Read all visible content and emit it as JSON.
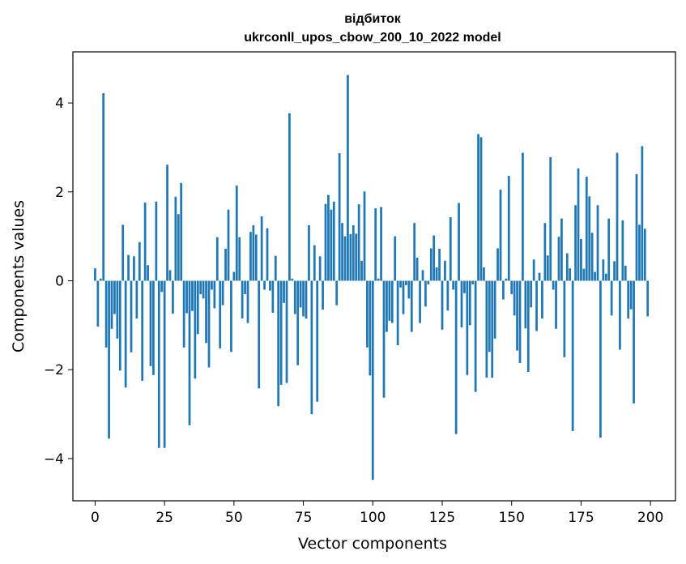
{
  "chart_data": {
    "type": "bar",
    "title": "відбиток",
    "subtitle": "ukrconll_upos_cbow_200_10_2022 model",
    "xlabel": "Vector components",
    "ylabel": "Components values",
    "xlim": [
      -8,
      209
    ],
    "ylim": [
      -4.95,
      5.15
    ],
    "xticks": [
      0,
      25,
      50,
      75,
      100,
      125,
      150,
      175,
      200
    ],
    "yticks": [
      -4,
      -2,
      0,
      2,
      4
    ],
    "bar_color": "#1f77b4",
    "grid": false,
    "legend": "none",
    "x": [
      0,
      1,
      2,
      3,
      4,
      5,
      6,
      7,
      8,
      9,
      10,
      11,
      12,
      13,
      14,
      15,
      16,
      17,
      18,
      19,
      20,
      21,
      22,
      23,
      24,
      25,
      26,
      27,
      28,
      29,
      30,
      31,
      32,
      33,
      34,
      35,
      36,
      37,
      38,
      39,
      40,
      41,
      42,
      43,
      44,
      45,
      46,
      47,
      48,
      49,
      50,
      51,
      52,
      53,
      54,
      55,
      56,
      57,
      58,
      59,
      60,
      61,
      62,
      63,
      64,
      65,
      66,
      67,
      68,
      69,
      70,
      71,
      72,
      73,
      74,
      75,
      76,
      77,
      78,
      79,
      80,
      81,
      82,
      83,
      84,
      85,
      86,
      87,
      88,
      89,
      90,
      91,
      92,
      93,
      94,
      95,
      96,
      97,
      98,
      99,
      100,
      101,
      102,
      103,
      104,
      105,
      106,
      107,
      108,
      109,
      110,
      111,
      112,
      113,
      114,
      115,
      116,
      117,
      118,
      119,
      120,
      121,
      122,
      123,
      124,
      125,
      126,
      127,
      128,
      129,
      130,
      131,
      132,
      133,
      134,
      135,
      136,
      137,
      138,
      139,
      140,
      141,
      142,
      143,
      144,
      145,
      146,
      147,
      148,
      149,
      150,
      151,
      152,
      153,
      154,
      155,
      156,
      157,
      158,
      159,
      160,
      161,
      162,
      163,
      164,
      165,
      166,
      167,
      168,
      169,
      170,
      171,
      172,
      173,
      174,
      175,
      176,
      177,
      178,
      179,
      180,
      181,
      182,
      183,
      184,
      185,
      186,
      187,
      188,
      189,
      190,
      191,
      192,
      193,
      194,
      195,
      196,
      197,
      198,
      199
    ],
    "values": [
      0.28,
      -1.03,
      0.05,
      4.22,
      -1.5,
      -3.55,
      -1.08,
      -0.75,
      -1.3,
      -2.02,
      1.26,
      -2.4,
      0.58,
      -1.61,
      0.55,
      -0.85,
      0.87,
      -2.25,
      1.76,
      0.35,
      -1.92,
      -2.12,
      1.78,
      -3.76,
      -0.25,
      -3.76,
      2.61,
      0.24,
      -0.74,
      1.89,
      1.5,
      2.2,
      -1.5,
      -0.73,
      -3.25,
      -0.68,
      -2.2,
      -1.2,
      -0.3,
      -0.4,
      -1.4,
      -1.95,
      -0.2,
      -0.62,
      0.98,
      -1.52,
      -0.55,
      0.72,
      1.6,
      -1.6,
      0.2,
      2.14,
      0.98,
      -0.85,
      -0.3,
      -0.95,
      1.1,
      1.25,
      1.04,
      -2.42,
      1.45,
      -0.2,
      1.18,
      -0.22,
      -0.72,
      0.56,
      -2.82,
      -2.34,
      -0.5,
      -2.3,
      3.77,
      0.05,
      -0.75,
      -1.9,
      -0.6,
      -0.8,
      -0.85,
      1.25,
      -3.0,
      0.8,
      -2.72,
      0.55,
      -0.65,
      1.73,
      1.93,
      1.6,
      1.78,
      -0.55,
      2.87,
      1.3,
      1.0,
      4.63,
      1.05,
      1.25,
      1.06,
      1.72,
      0.45,
      2.01,
      -1.5,
      -2.13,
      -4.48,
      1.63,
      0.05,
      1.66,
      -2.63,
      -1.15,
      -0.9,
      -0.95,
      1.0,
      -1.45,
      -0.15,
      -0.75,
      -0.1,
      -0.4,
      -1.15,
      1.3,
      0.52,
      -0.95,
      0.24,
      -0.58,
      -0.08,
      0.73,
      1.02,
      0.3,
      0.72,
      -1.1,
      0.45,
      -0.67,
      1.43,
      -0.2,
      -3.45,
      1.75,
      -1.05,
      -0.28,
      -2.12,
      -1.0,
      -0.08,
      -2.5,
      3.3,
      3.23,
      0.3,
      -2.18,
      -1.6,
      -2.18,
      -1.3,
      0.73,
      2.05,
      -0.42,
      0.05,
      2.36,
      -0.3,
      -0.78,
      -1.57,
      -1.85,
      2.88,
      -1.07,
      -2.05,
      -0.6,
      0.48,
      -1.13,
      0.18,
      -0.85,
      1.3,
      0.57,
      2.78,
      -0.2,
      -1.08,
      0.99,
      1.4,
      -1.72,
      0.62,
      0.28,
      -3.38,
      1.7,
      2.53,
      0.94,
      0.27,
      2.34,
      1.9,
      1.08,
      0.2,
      1.7,
      -3.53,
      0.48,
      0.16,
      1.4,
      -0.78,
      0.44,
      2.88,
      -1.55,
      1.36,
      0.34,
      -0.85,
      -0.64,
      -2.76,
      2.4,
      1.26,
      3.03,
      1.17,
      -0.8
    ]
  }
}
